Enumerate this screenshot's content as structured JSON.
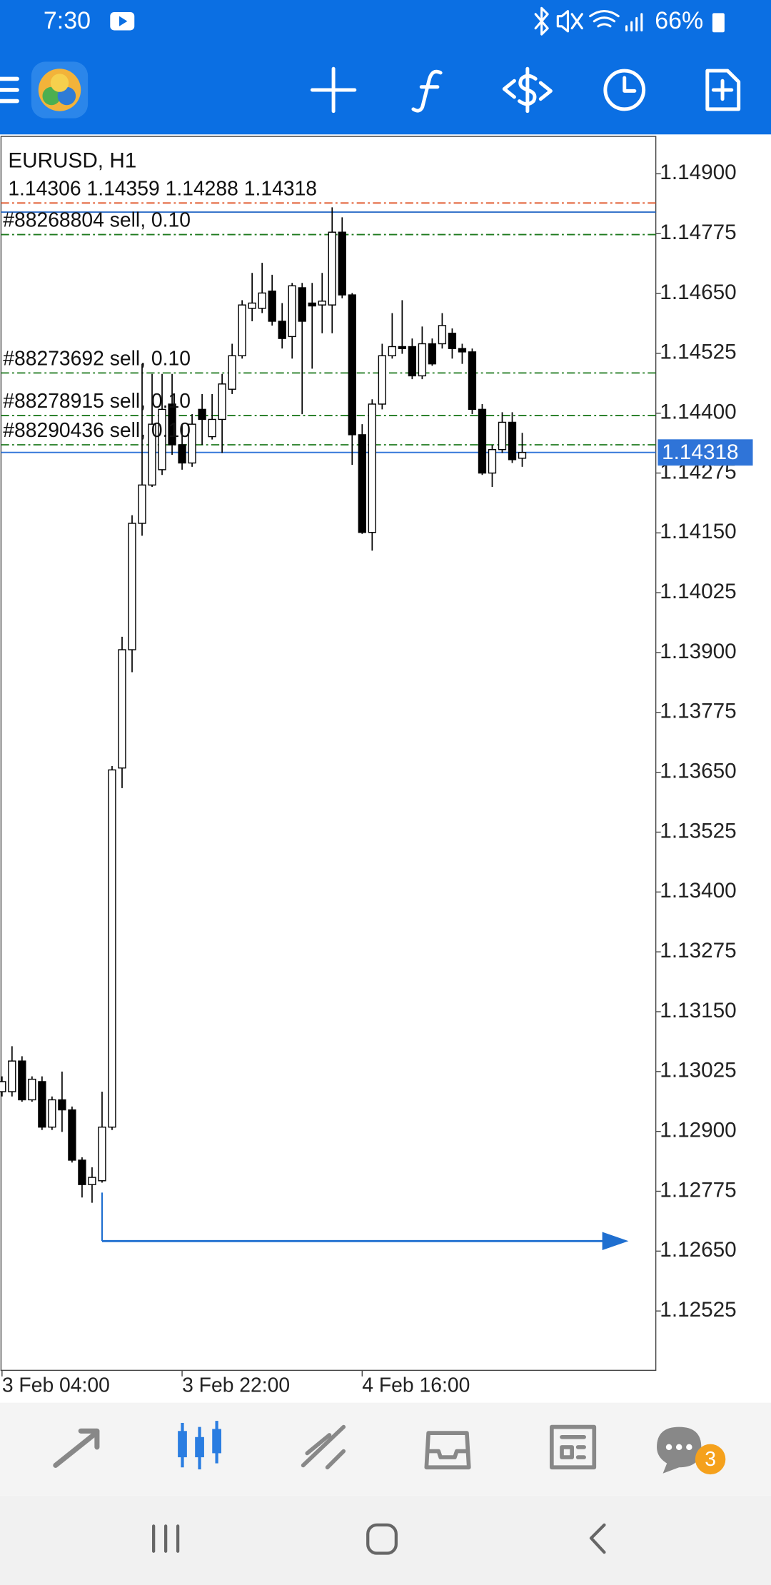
{
  "status_bar": {
    "time": "7:30",
    "battery": "66%"
  },
  "bottom_nav": {
    "badge": "3"
  },
  "chart_data": {
    "type": "candlestick",
    "title": "EURUSD, H1",
    "subtitle": "1.14306 1.14359 1.14288 1.14318",
    "categories": [
      "3 Feb 04:00",
      null,
      null,
      null,
      null,
      null,
      null,
      null,
      null,
      null,
      null,
      null,
      null,
      null,
      null,
      null,
      null,
      null,
      "3 Feb 22:00",
      null,
      null,
      null,
      null,
      null,
      null,
      null,
      null,
      null,
      null,
      null,
      null,
      null,
      null,
      null,
      null,
      null,
      "4 Feb 16:00",
      null,
      null,
      null,
      null,
      null,
      null,
      null,
      null,
      null,
      null,
      null,
      null,
      null,
      null,
      null,
      null
    ],
    "open": [
      1.12983,
      1.12983,
      1.13047,
      1.12966,
      1.13004,
      1.12909,
      1.12966,
      1.12945,
      1.1284,
      1.12789,
      1.12797,
      1.12909,
      1.13659,
      1.13906,
      1.1417,
      1.1425,
      1.14282,
      1.14419,
      1.14334,
      1.14296,
      1.14408,
      1.14351,
      1.14387,
      1.1445,
      1.1452,
      1.14619,
      1.14619,
      1.14655,
      1.14592,
      1.1456,
      1.14662,
      1.1463,
      1.14626,
      1.14626,
      1.14778,
      1.14647,
      1.14355,
      1.14151,
      1.14419,
      1.1452,
      1.14539,
      1.14539,
      1.14478,
      1.14545,
      1.14545,
      1.14567,
      1.14535,
      1.14528,
      1.14408,
      1.14275,
      1.14324,
      1.14381,
      1.14306
    ],
    "high": [
      1.13015,
      1.13078,
      1.13057,
      1.13015,
      1.13015,
      1.12973,
      1.13025,
      1.12952,
      1.12846,
      1.12825,
      1.12983,
      1.13663,
      1.13933,
      1.14187,
      1.14503,
      1.14482,
      1.14482,
      1.14482,
      1.14377,
      1.14398,
      1.1444,
      1.1444,
      1.14482,
      1.14545,
      1.14636,
      1.14693,
      1.14714,
      1.14689,
      1.1463,
      1.14672,
      1.14672,
      1.14672,
      1.14693,
      1.1483,
      1.14809,
      1.14651,
      1.14377,
      1.14429,
      1.14545,
      1.14609,
      1.14636,
      1.14556,
      1.14581,
      1.14556,
      1.14609,
      1.14577,
      1.14545,
      1.14535,
      1.14419,
      1.14334,
      1.14402,
      1.14402,
      1.14359
    ],
    "low": [
      1.12973,
      1.12973,
      1.12962,
      1.12962,
      1.12903,
      1.12903,
      1.12899,
      1.12835,
      1.12762,
      1.12751,
      1.12793,
      1.12903,
      1.13617,
      1.13859,
      1.14144,
      1.14246,
      1.14271,
      1.14313,
      1.14282,
      1.14288,
      1.14334,
      1.14345,
      1.14317,
      1.1444,
      1.14514,
      1.14592,
      1.14609,
      1.14583,
      1.14535,
      1.14514,
      1.14398,
      1.14493,
      1.14567,
      1.14567,
      1.1464,
      1.14292,
      1.14148,
      1.14113,
      1.14408,
      1.14514,
      1.14524,
      1.14471,
      1.14471,
      1.14499,
      1.14535,
      1.14514,
      1.14503,
      1.14398,
      1.14271,
      1.14246,
      1.14317,
      1.14296,
      1.14288
    ],
    "close": [
      1.13004,
      1.13047,
      1.12966,
      1.13009,
      1.12909,
      1.12966,
      1.12945,
      1.1284,
      1.12789,
      1.12804,
      1.12909,
      1.13655,
      1.13906,
      1.1417,
      1.1425,
      1.14377,
      1.14408,
      1.14334,
      1.14296,
      1.14377,
      1.14387,
      1.14387,
      1.14461,
      1.1452,
      1.14626,
      1.1463,
      1.14651,
      1.14592,
      1.14556,
      1.14666,
      1.14592,
      1.14624,
      1.14634,
      1.14778,
      1.14647,
      1.14355,
      1.14151,
      1.14419,
      1.1452,
      1.14539,
      1.14535,
      1.14478,
      1.14545,
      1.14503,
      1.14583,
      1.14535,
      1.14528,
      1.14408,
      1.14275,
      1.14324,
      1.14381,
      1.14303,
      1.14318
    ],
    "up_color": "#ffffff",
    "down_color": "#000000",
    "ylim": [
      1.12401,
      1.14978
    ],
    "yticks": [
      {
        "value": 1.149,
        "label": "1.14900"
      },
      1.14775,
      {
        "value": 1.1465,
        "label": "1.14650"
      },
      1.14525,
      {
        "value": 1.144,
        "label": "1.14400"
      },
      1.14275,
      {
        "value": 1.1415,
        "label": "1.14150"
      },
      1.14025,
      {
        "value": 1.139,
        "label": "1.13900"
      },
      1.13775,
      {
        "value": 1.1365,
        "label": "1.13650"
      },
      1.13525,
      {
        "value": 1.134,
        "label": "1.13400"
      },
      1.13275,
      {
        "value": 1.1315,
        "label": "1.13150"
      },
      1.13025,
      {
        "value": 1.129,
        "label": "1.12900"
      },
      1.12775,
      {
        "value": 1.1265,
        "label": "1.12650"
      },
      1.12525
    ],
    "bid": 1.14318,
    "bid_color": "#2f74d8",
    "orders": [
      {
        "label": "#88268804 sell, 0.10",
        "price": 1.14773
      },
      {
        "label": "#88273692 sell, 0.10",
        "price": 1.14484
      },
      {
        "label": "#88278915 sell, 0.10",
        "price": 1.14395
      },
      {
        "label": "#88290436 sell, 0.10",
        "price": 1.14334
      }
    ],
    "order_color": "#1f7a1f",
    "lines": [
      {
        "price": 1.14839,
        "color": "#e0562a",
        "style": "dash-dot"
      },
      {
        "price": 1.1482,
        "color": "#2f6fc8",
        "style": "solid"
      }
    ],
    "arrow": {
      "price": 1.12671,
      "color": "#1f6fd0"
    }
  }
}
